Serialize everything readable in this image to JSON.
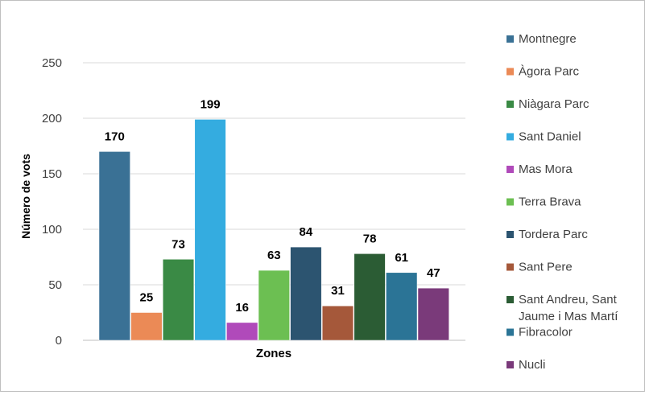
{
  "chart_data": {
    "type": "bar",
    "title": "",
    "xlabel": "Zones",
    "ylabel": "Número de vots",
    "ylim": [
      0,
      250
    ],
    "yticks": [
      0,
      50,
      100,
      150,
      200,
      250
    ],
    "grid": true,
    "legend_position": "right",
    "categories": [
      "Montnegre",
      "Àgora Parc",
      "Niàgara Parc",
      "Sant Daniel",
      "Mas  Mora",
      "Terra Brava",
      "Tordera Parc",
      "Sant Pere",
      "Sant Andreu, Sant Jaume i Mas Martí",
      "Fibracolor",
      "Nucli"
    ],
    "legend_lines": [
      [
        "Montnegre"
      ],
      [
        "Àgora Parc"
      ],
      [
        "Niàgara Parc"
      ],
      [
        "Sant Daniel"
      ],
      [
        "Mas  Mora"
      ],
      [
        "Terra Brava"
      ],
      [
        "Tordera Parc"
      ],
      [
        "Sant Pere"
      ],
      [
        "Sant Andreu, Sant",
        "Jaume i Mas Martí"
      ],
      [
        "Fibracolor"
      ],
      [
        "Nucli"
      ]
    ],
    "values": [
      170,
      25,
      73,
      199,
      16,
      63,
      84,
      31,
      78,
      61,
      47
    ],
    "colors": [
      "#3a7195",
      "#eb8a56",
      "#3a8a45",
      "#34ace0",
      "#b04aba",
      "#6cbf52",
      "#2c5470",
      "#a5583a",
      "#2b5c34",
      "#2b7496",
      "#7a3a7a"
    ]
  }
}
